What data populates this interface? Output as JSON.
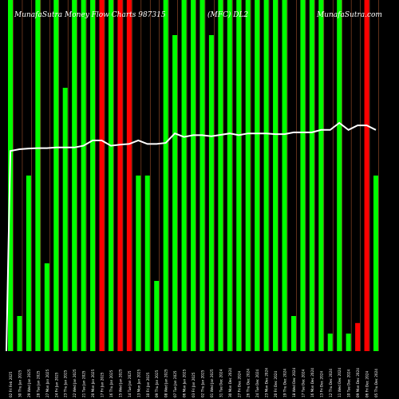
{
  "header": {
    "left": "MunafaSutra Money Flow Charts 987315",
    "middle": "(MFC)  DL2",
    "right": "MunafaSutra.com"
  },
  "colors": {
    "background": "#000000",
    "up": "#00ff00",
    "down": "#ff0000",
    "line": "#ffffff",
    "grid": "#a0522d"
  },
  "chart_data": {
    "type": "bar",
    "ylim": [
      0,
      100
    ],
    "categories": [
      "02 Fri Feb 2025",
      "30 Thu Jan 2025",
      "29 Wed Jan 2025",
      "28 Tue Jan 2025",
      "27 Mon Jan 2025",
      "24 Fri Jan 2025",
      "23 Thu Jan 2025",
      "22 Wed Jan 2025",
      "21 Tue Jan 2025",
      "20 Mon Jan 2025",
      "17 Fri Jan 2025",
      "16 Thu Jan 2025",
      "15 Wed Jan 2025",
      "14 Tue Jan 2025",
      "13 Mon Jan 2025",
      "10 Fri Jan 2025",
      "09 Thu Jan 2025",
      "08 Wed Jan 2025",
      "07 Tue Jan 2025",
      "06 Mon Jan 2025",
      "03 Fri Jan 2025",
      "02 Thu Jan 2025",
      "01 Wed Jan 2025",
      "31 Tue Dec 2024",
      "30 Mon Dec 2024",
      "27 Fri Dec 2024",
      "26 Thu Dec 2024",
      "24 Tue Dec 2024",
      "23 Mon Dec 2024",
      "20 Fri Dec 2024",
      "19 Thu Dec 2024",
      "18 Wed Dec 2024",
      "17 Tue Dec 2024",
      "16 Mon Dec 2024",
      "13 Fri Dec 2024",
      "12 Thu Dec 2024",
      "11 Wed Dec 2024",
      "10 Tue Dec 2024",
      "09 Mon Dec 2024",
      "06 Fri Dec 2024",
      "05 Thu Dec 2024"
    ],
    "values": [
      100,
      10,
      50,
      100,
      25,
      100,
      75,
      100,
      100,
      100,
      100,
      100,
      100,
      100,
      50,
      50,
      20,
      100,
      90,
      100,
      100,
      100,
      90,
      100,
      100,
      100,
      100,
      100,
      100,
      100,
      100,
      10,
      100,
      100,
      100,
      5,
      100,
      5,
      8,
      100,
      50
    ],
    "directions": [
      "up",
      "up",
      "up",
      "up",
      "up",
      "up",
      "up",
      "up",
      "up",
      "up",
      "down",
      "up",
      "down",
      "down",
      "up",
      "up",
      "up",
      "up",
      "up",
      "up",
      "up",
      "up",
      "up",
      "up",
      "up",
      "up",
      "up",
      "up",
      "up",
      "up",
      "up",
      "up",
      "up",
      "up",
      "up",
      "up",
      "up",
      "up",
      "down",
      "down",
      "up"
    ],
    "line": [
      57,
      57.5,
      57.7,
      57.8,
      57.8,
      58,
      58,
      58,
      58.5,
      60,
      60,
      58.5,
      58.8,
      59,
      60,
      59,
      59,
      59.3,
      62,
      61,
      61.5,
      61.5,
      61.2,
      61.6,
      62,
      61.5,
      62,
      62,
      62,
      61.8,
      61.8,
      62.3,
      62.3,
      62.3,
      63,
      63,
      65,
      63,
      64.3,
      64.3,
      63
    ]
  }
}
